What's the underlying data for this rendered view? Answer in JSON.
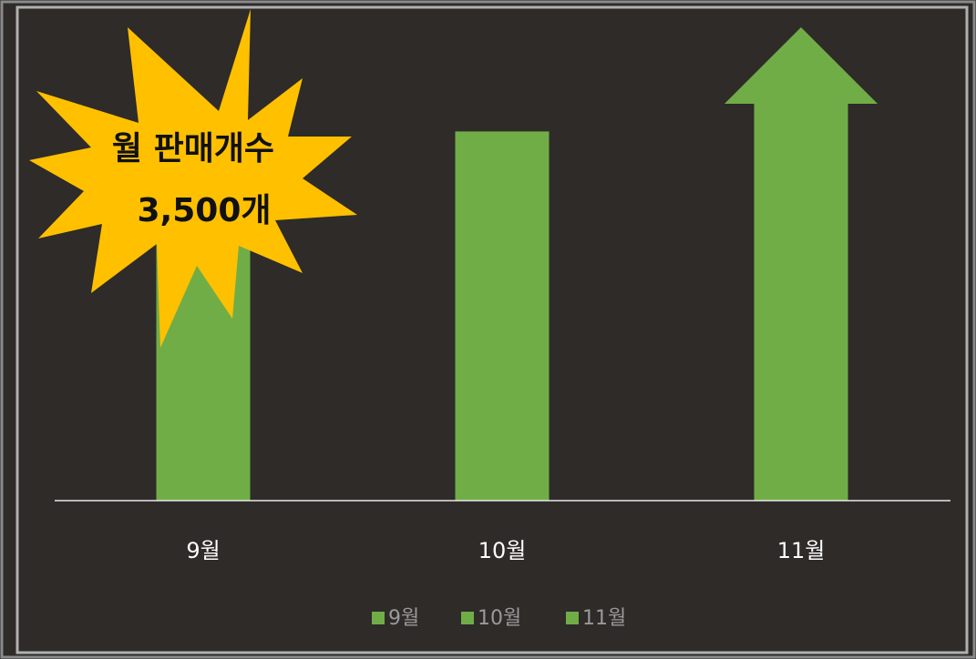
{
  "chart_data": {
    "type": "bar",
    "categories": [
      "9월",
      "10월",
      "11월"
    ],
    "values": [
      58,
      78,
      100
    ],
    "color": "#70ad47",
    "shapes": [
      "rect",
      "rect",
      "arrow"
    ],
    "ylim": [
      0,
      100
    ],
    "annotations": [
      "월 판매개수",
      "3,500개"
    ],
    "legend": "bottom"
  }
}
